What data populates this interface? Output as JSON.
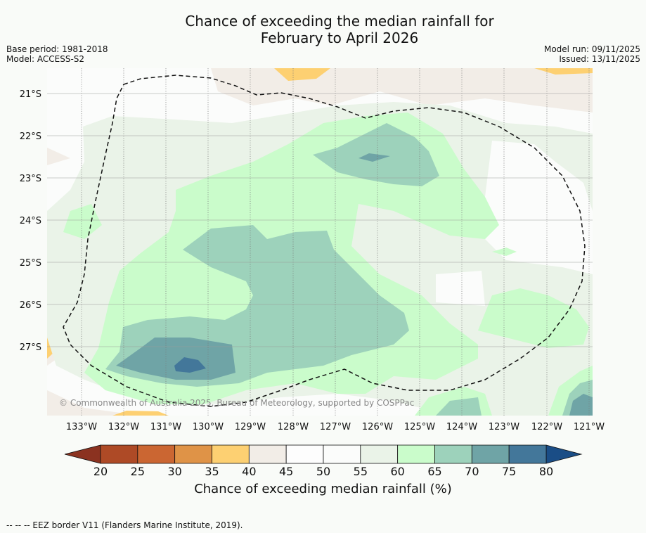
{
  "title_line1": "Chance of exceeding the median rainfall for",
  "title_line2": "February to April 2026",
  "base_period": "Base period: 1981-2018",
  "model": "Model: ACCESS-S2",
  "model_run": "Model run: 09/11/2025",
  "issued": "Issued: 13/11/2025",
  "copyright": "© Commonwealth of Australia 2025, Bureau of Meteorology, supported by COSPPac",
  "lat_labels": [
    "21°S",
    "22°S",
    "23°S",
    "24°S",
    "25°S",
    "26°S",
    "27°S"
  ],
  "lon_labels": [
    "133°W",
    "132°W",
    "131°W",
    "130°W",
    "129°W",
    "128°W",
    "127°W",
    "126°W",
    "125°W",
    "124°W",
    "123°W",
    "122°W",
    "121°W"
  ],
  "colorbar": {
    "ticks": [
      "20",
      "25",
      "30",
      "35",
      "40",
      "45",
      "50",
      "55",
      "60",
      "65",
      "70",
      "75",
      "80"
    ],
    "colors": [
      "#ae4a26",
      "#cb6632",
      "#df9347",
      "#fdd072",
      "#f2ede7",
      "#fdfdfd",
      "#fbfcfb",
      "#eaf3e8",
      "#cafccb",
      "#9dd2bb",
      "#6fa4a6",
      "#43779a"
    ],
    "under_color": "#8b3220",
    "over_color": "#1a4d86",
    "label": "Chance of exceeding median rainfall (%)"
  },
  "footer": "--  --  -- EEZ border V11 (Flanders Marine Institute, 2019)."
}
